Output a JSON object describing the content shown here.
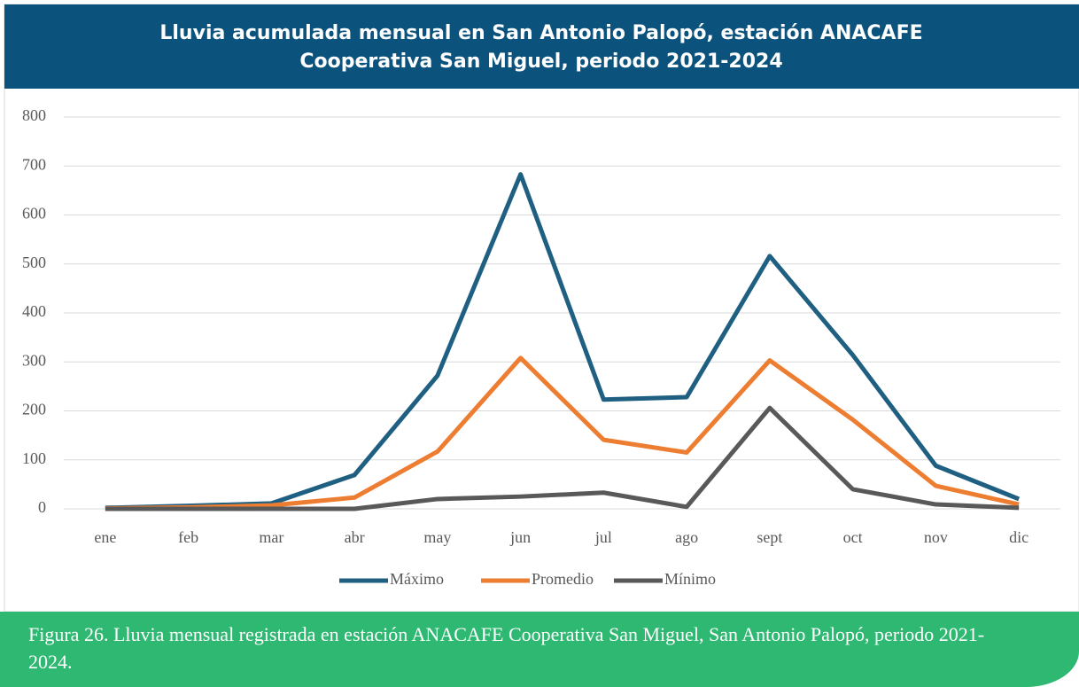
{
  "chart_data": {
    "type": "line",
    "title": [
      "Lluvia  acumulada  mensual en San Antonio Palopó, estación ANACAFE",
      "Cooperativa San Miguel, periodo  2021-2024"
    ],
    "categories": [
      "ene",
      "feb",
      "mar",
      "abr",
      "may",
      "jun",
      "jul",
      "ago",
      "sept",
      "oct",
      "nov",
      "dic"
    ],
    "series": [
      {
        "name": "Máximo",
        "color": "#1f5f82",
        "values": [
          2,
          6,
          11,
          69,
          272,
          683,
          223,
          228,
          516,
          314,
          88,
          20
        ]
      },
      {
        "name": "Promedio",
        "color": "#ed7d31",
        "values": [
          1,
          3,
          7,
          23,
          117,
          308,
          141,
          115,
          303,
          182,
          47,
          9
        ]
      },
      {
        "name": "Mínimo",
        "color": "#595959",
        "values": [
          0,
          0,
          0,
          0,
          20,
          25,
          33,
          4,
          206,
          40,
          9,
          2
        ]
      }
    ],
    "ylim": [
      0,
      800
    ],
    "yticks": [
      0,
      100,
      200,
      300,
      400,
      500,
      600,
      700,
      800
    ],
    "grid": true,
    "legend": "bottom"
  },
  "caption": "Figura 26. Lluvia mensual registrada en estación ANACAFE Cooperativa San Miguel, San Antonio Palopó, periodo 2021-2024."
}
